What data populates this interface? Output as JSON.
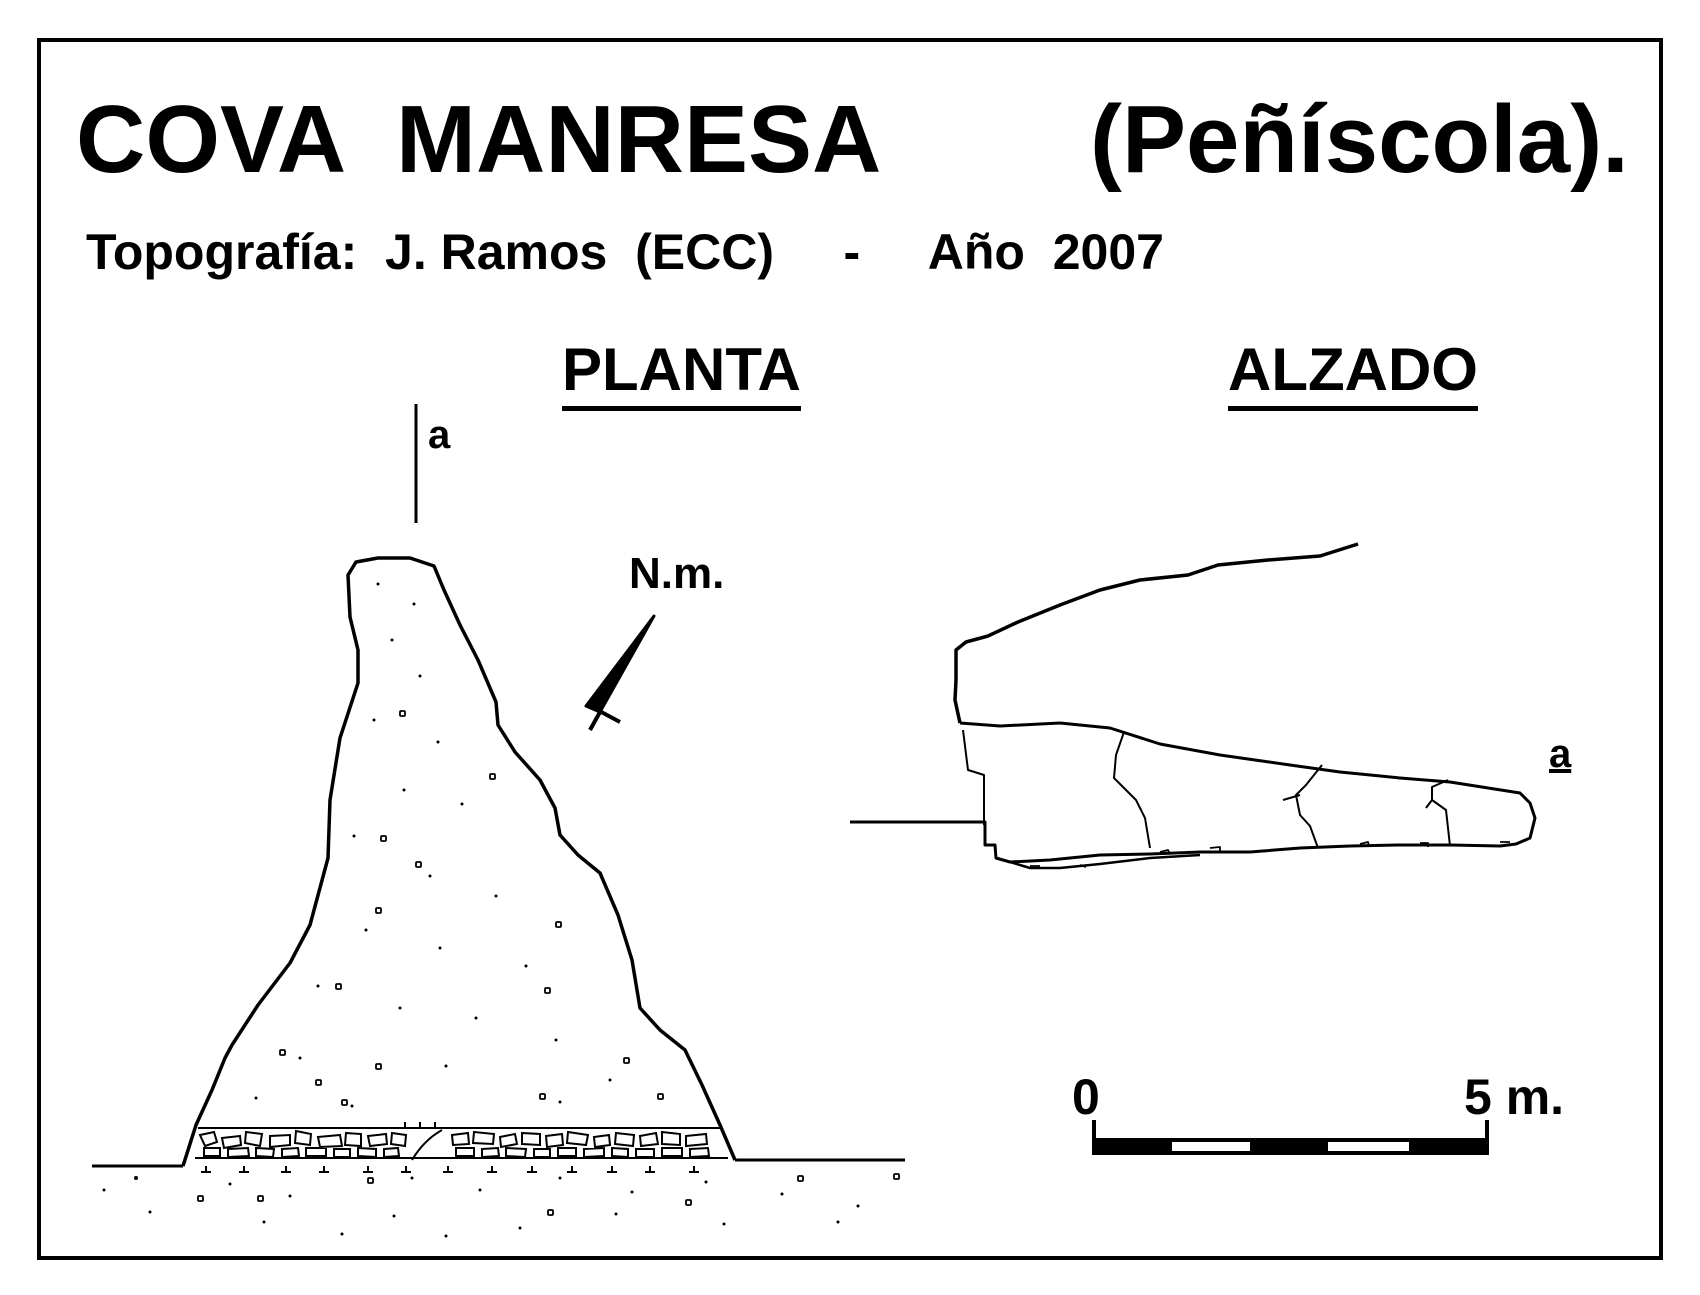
{
  "header": {
    "title": "COVA  MANRESA",
    "subtitle": "(Peñíscola).",
    "credits": "Topografía:  J. Ramos  (ECC)     -     Año  2007"
  },
  "plan": {
    "heading": "PLANTA",
    "section_mark": "a",
    "north_label": "N.m."
  },
  "elevation": {
    "heading": "ALZADO",
    "section_mark": "a"
  },
  "scale_bar": {
    "start_label": "0",
    "end_label": "5 m."
  }
}
